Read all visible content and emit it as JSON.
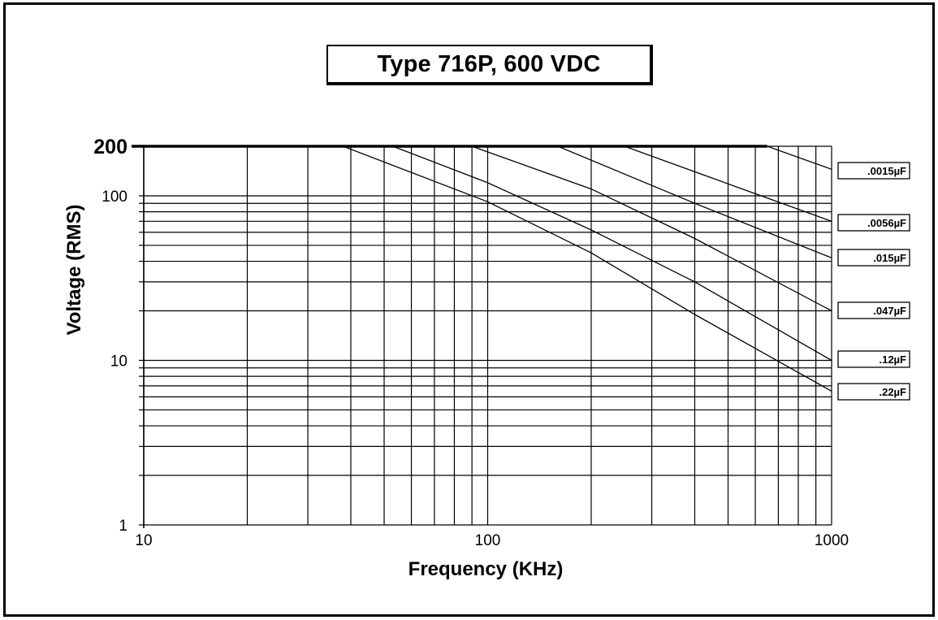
{
  "chart_data": {
    "type": "line",
    "title": "Type 716P,  600 VDC",
    "xlabel": "Frequency (KHz)",
    "ylabel": "Voltage (RMS)",
    "xscale": "log",
    "yscale": "log",
    "xlim": [
      10,
      1000
    ],
    "ylim": [
      1,
      200
    ],
    "grid": true,
    "x_ticks": [
      {
        "value": 10,
        "label": "10"
      },
      {
        "value": 100,
        "label": "100"
      },
      {
        "value": 1000,
        "label": "1000"
      }
    ],
    "y_ticks": [
      {
        "value": 1,
        "label": "1"
      },
      {
        "value": 10,
        "label": "10"
      },
      {
        "value": 100,
        "label": "100"
      },
      {
        "value": 200,
        "label": "200"
      }
    ],
    "series": [
      {
        "name": ".0015µF",
        "x": [
          10,
          650,
          1000
        ],
        "y": [
          200,
          200,
          145
        ]
      },
      {
        "name": ".0056µF",
        "x": [
          10,
          250,
          400,
          1000
        ],
        "y": [
          200,
          200,
          140,
          70
        ]
      },
      {
        "name": ".015µF",
        "x": [
          10,
          160,
          400,
          1000
        ],
        "y": [
          200,
          200,
          90,
          42
        ]
      },
      {
        "name": ".047µF",
        "x": [
          10,
          90,
          200,
          400,
          1000
        ],
        "y": [
          200,
          200,
          110,
          55,
          20
        ]
      },
      {
        "name": ".12µF",
        "x": [
          10,
          53,
          100,
          200,
          400,
          1000
        ],
        "y": [
          200,
          200,
          120,
          62,
          30,
          10
        ]
      },
      {
        "name": ".22µF",
        "x": [
          10,
          38,
          100,
          200,
          400,
          1000
        ],
        "y": [
          200,
          200,
          92,
          45,
          19,
          6.5
        ]
      }
    ]
  }
}
